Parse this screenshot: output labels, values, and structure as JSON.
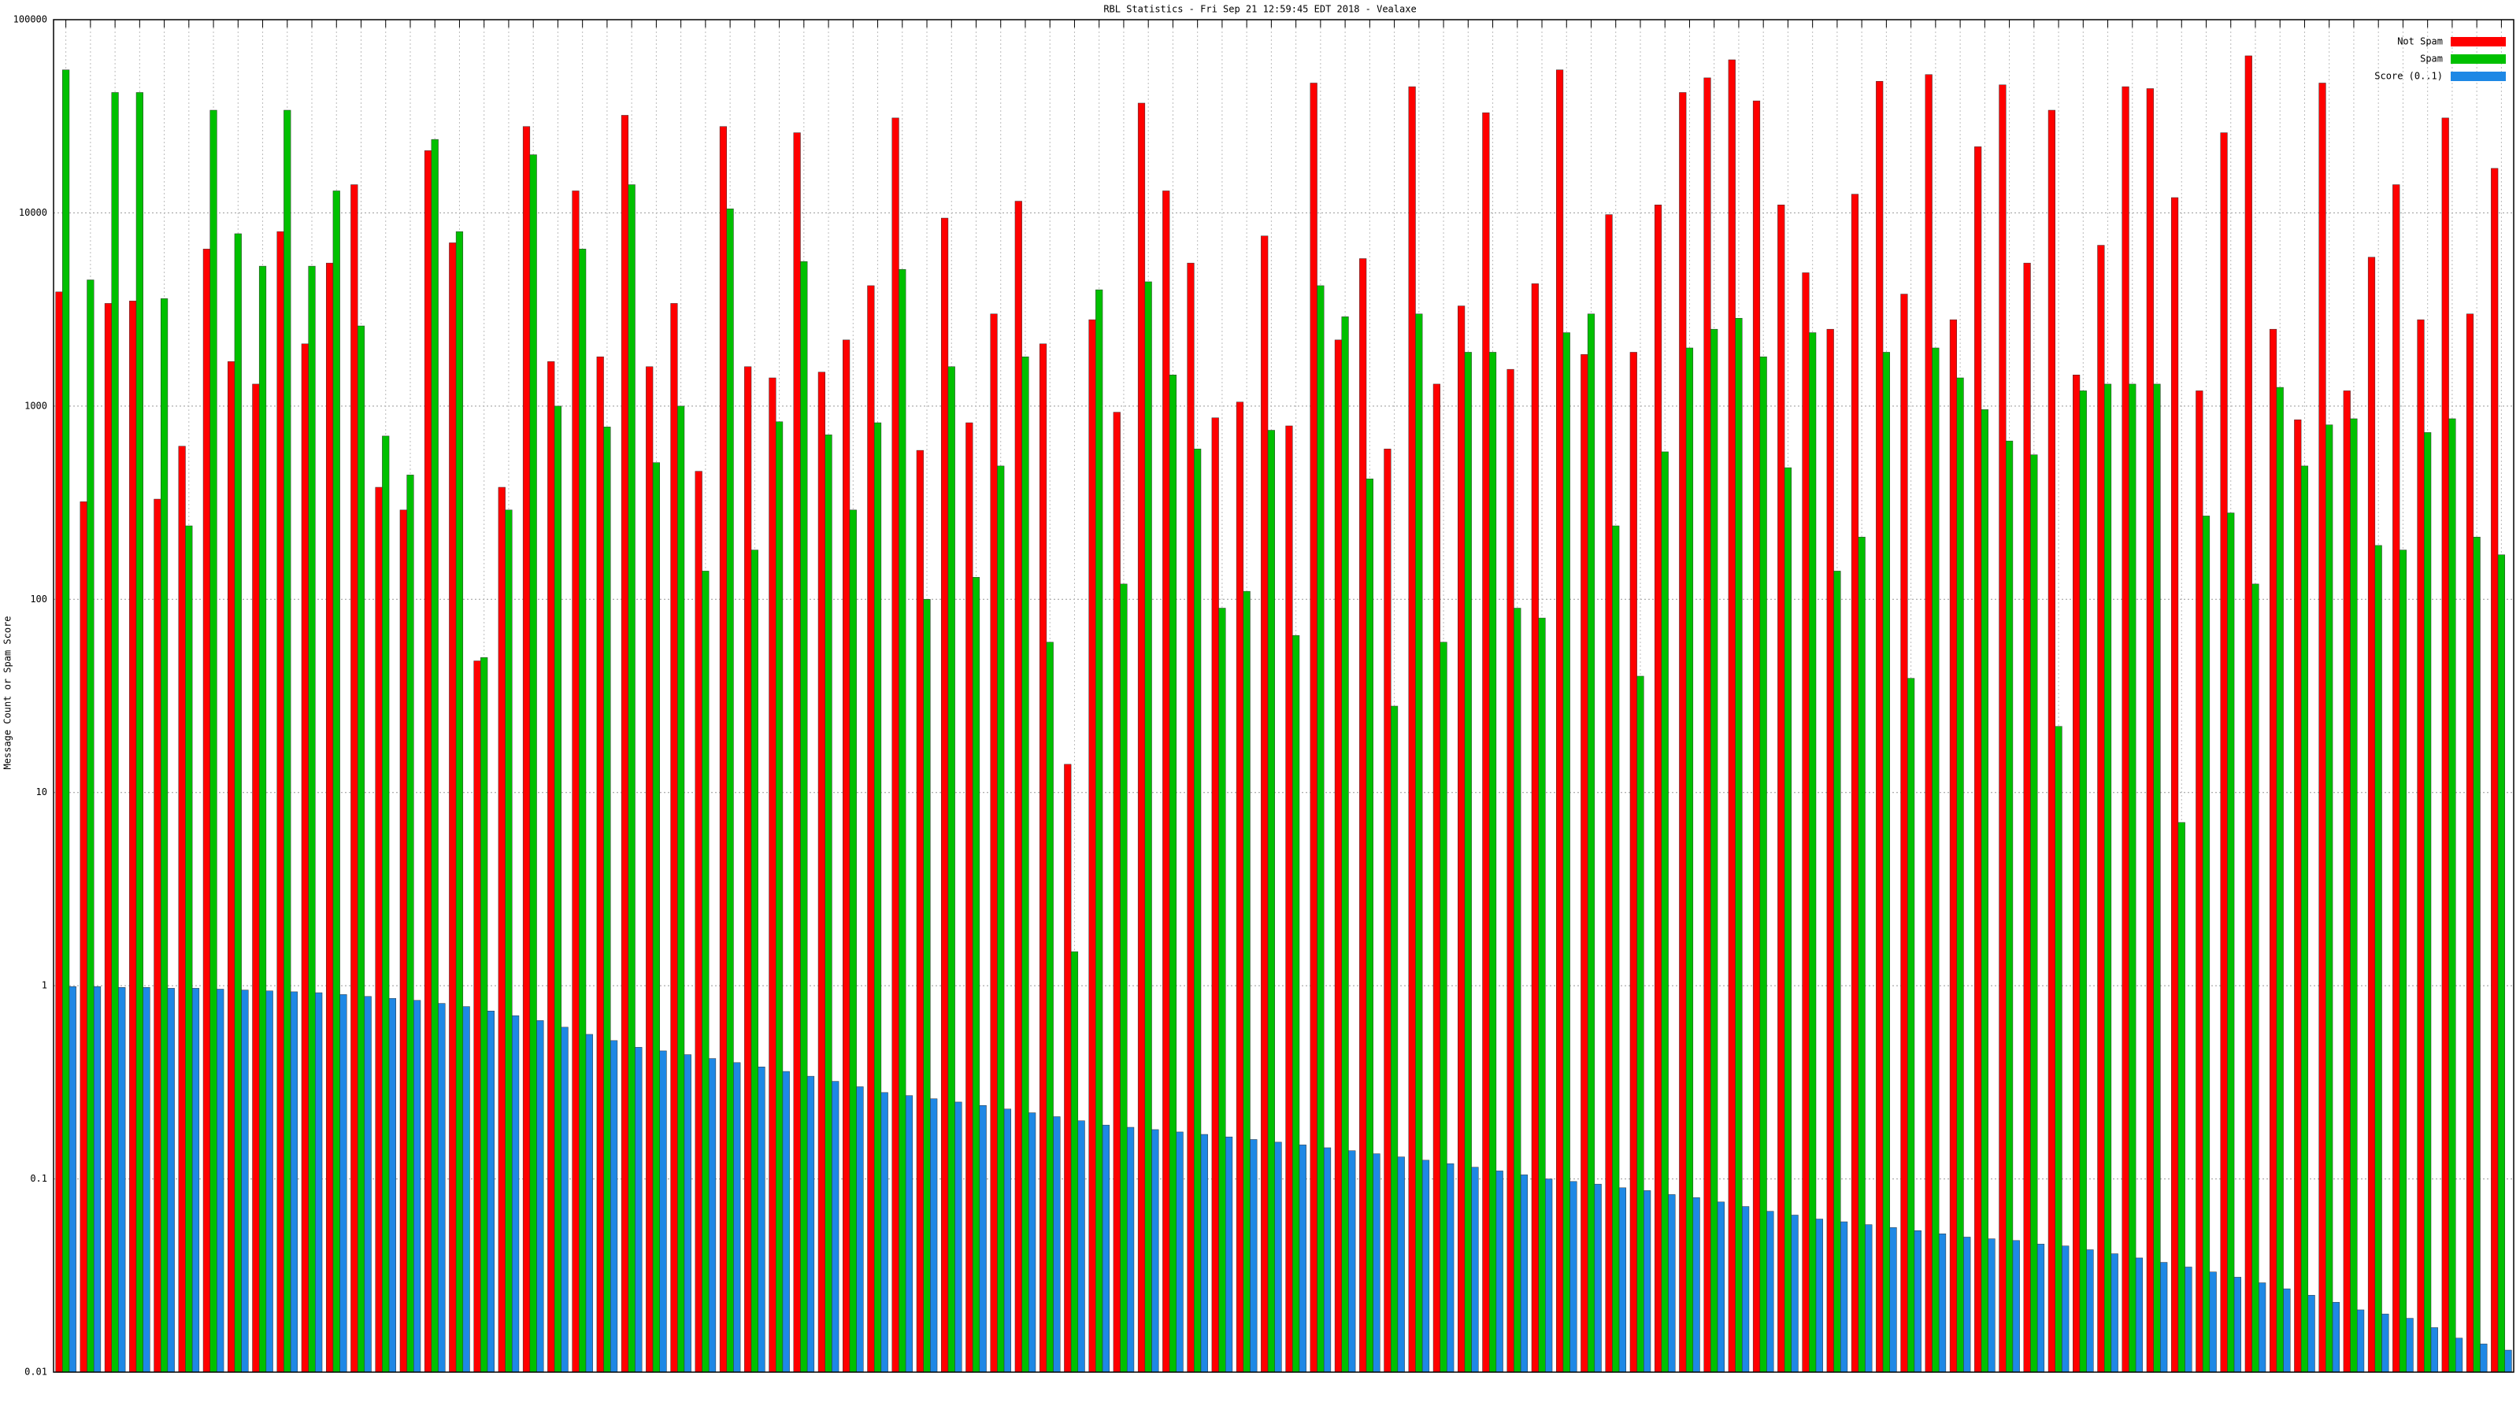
{
  "chart_data": {
    "type": "bar",
    "title": "RBL Statistics - Fri Sep 21 12:59:45 EDT 2018 - Vealaxe",
    "y_label": "Message Count or Spam Score",
    "log_y": true,
    "grid": true,
    "legend_position": "top-right",
    "categories": [
      null,
      null,
      null,
      null,
      null,
      null,
      null,
      null,
      null,
      null,
      null,
      null,
      null,
      null,
      null,
      null,
      null,
      null,
      null,
      null,
      null,
      null,
      null,
      null,
      null,
      null,
      null,
      null,
      null,
      null,
      null,
      null,
      null,
      null,
      null,
      null,
      null,
      null,
      null,
      null,
      null,
      null,
      null,
      null,
      null,
      null,
      null,
      null,
      null,
      null,
      null,
      null,
      null,
      null,
      null,
      null,
      null,
      null,
      null,
      null,
      null,
      null,
      null,
      null,
      null,
      null,
      null,
      null,
      null,
      null,
      null,
      null,
      null,
      null,
      null,
      null,
      null,
      null,
      null,
      null,
      null,
      null,
      null,
      null,
      null,
      null,
      null,
      null,
      null,
      null,
      null,
      null,
      null,
      null,
      null,
      null,
      null,
      null,
      null,
      null
    ],
    "ylim": [
      0.01,
      100000
    ],
    "yticks": [
      0.01,
      0.1,
      1,
      10,
      100,
      1000,
      10000,
      100000
    ],
    "series": [
      {
        "name": "Not Spam",
        "color": "#ff0000",
        "values": [
          3900,
          320,
          3400,
          3500,
          330,
          620,
          6500,
          1700,
          1300,
          8000,
          2100,
          5500,
          14000,
          380,
          290,
          21000,
          7000,
          48,
          380,
          28000,
          1700,
          13000,
          1800,
          32000,
          1600,
          3400,
          460,
          28000,
          1600,
          1400,
          26000,
          1500,
          2200,
          4200,
          31000,
          590,
          9400,
          820,
          3000,
          11500,
          2100,
          14,
          2800,
          930,
          37000,
          13000,
          5500,
          870,
          1050,
          7600,
          790,
          47000,
          2200,
          5800,
          600,
          45000,
          1300,
          3300,
          33000,
          1550,
          4300,
          55000,
          1850,
          9800,
          1900,
          11000,
          42000,
          50000,
          62000,
          38000,
          11000,
          4900,
          2500,
          12500,
          48000,
          3800,
          52000,
          2800,
          22000,
          46000,
          5500,
          34000,
          1450,
          6800,
          45000,
          44000,
          12000,
          1200,
          26000,
          65000,
          2500,
          850,
          47000,
          1200,
          5900,
          14000,
          2800,
          31000,
          3000,
          17000
        ]
      },
      {
        "name": "Spam",
        "color": "#00c000",
        "values": [
          55000,
          4500,
          42000,
          42000,
          3600,
          240,
          34000,
          7800,
          5300,
          34000,
          5300,
          13000,
          2600,
          700,
          440,
          24000,
          8000,
          50,
          290,
          20000,
          1000,
          6500,
          780,
          14000,
          510,
          1000,
          140,
          10500,
          180,
          830,
          5600,
          710,
          290,
          820,
          5100,
          100,
          1600,
          130,
          490,
          1800,
          60,
          1.5,
          4000,
          120,
          4400,
          1450,
          600,
          90,
          110,
          750,
          65,
          4200,
          2900,
          420,
          28,
          3000,
          60,
          1900,
          1900,
          90,
          80,
          2400,
          3000,
          240,
          40,
          580,
          2000,
          2500,
          2850,
          1800,
          480,
          2400,
          140,
          210,
          1900,
          39,
          2000,
          1400,
          960,
          660,
          560,
          22,
          1200,
          1300,
          1300,
          1300,
          7,
          270,
          280,
          120,
          1250,
          490,
          800,
          860,
          190,
          180,
          730,
          860,
          210,
          170
        ]
      },
      {
        "name": "Score (0..1)",
        "color": "#1e88e5",
        "values": [
          0.99,
          0.99,
          0.98,
          0.98,
          0.97,
          0.97,
          0.96,
          0.95,
          0.94,
          0.93,
          0.92,
          0.9,
          0.88,
          0.86,
          0.84,
          0.81,
          0.78,
          0.74,
          0.7,
          0.66,
          0.61,
          0.56,
          0.52,
          0.48,
          0.46,
          0.44,
          0.42,
          0.4,
          0.38,
          0.36,
          0.34,
          0.32,
          0.3,
          0.28,
          0.27,
          0.26,
          0.25,
          0.24,
          0.23,
          0.22,
          0.21,
          0.2,
          0.19,
          0.185,
          0.18,
          0.175,
          0.17,
          0.165,
          0.16,
          0.155,
          0.15,
          0.145,
          0.14,
          0.135,
          0.13,
          0.125,
          0.12,
          0.115,
          0.11,
          0.105,
          0.1,
          0.097,
          0.094,
          0.09,
          0.087,
          0.083,
          0.08,
          0.076,
          0.072,
          0.068,
          0.065,
          0.062,
          0.06,
          0.058,
          0.056,
          0.054,
          0.052,
          0.05,
          0.049,
          0.048,
          0.046,
          0.045,
          0.043,
          0.041,
          0.039,
          0.037,
          0.035,
          0.033,
          0.031,
          0.029,
          0.027,
          0.025,
          0.023,
          0.021,
          0.02,
          0.019,
          0.017,
          0.015,
          0.014,
          0.013
        ]
      }
    ]
  }
}
